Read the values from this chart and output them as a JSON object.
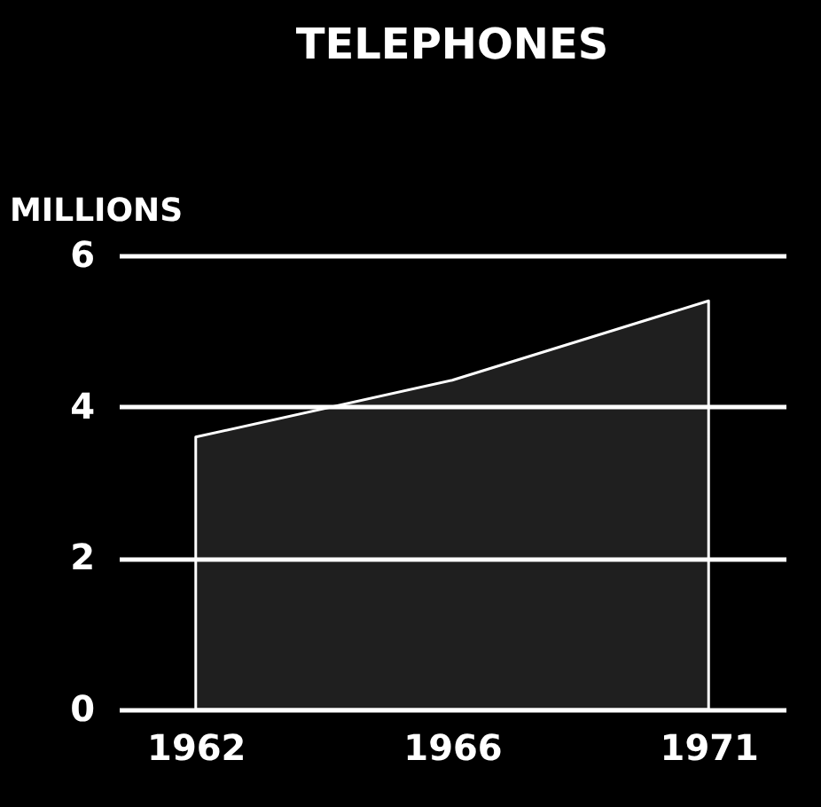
{
  "chart_data": {
    "type": "area",
    "title": "TELEPHONES",
    "ylabel": "MILLIONS",
    "categories": [
      "1962",
      "1966",
      "1971"
    ],
    "series": [
      {
        "color": "#ffffff",
        "values": [
          3.6,
          4.35,
          5.4
        ]
      }
    ],
    "ylim": [
      0,
      6
    ],
    "yticks": [
      0,
      2,
      4,
      6
    ],
    "grid": "y"
  }
}
